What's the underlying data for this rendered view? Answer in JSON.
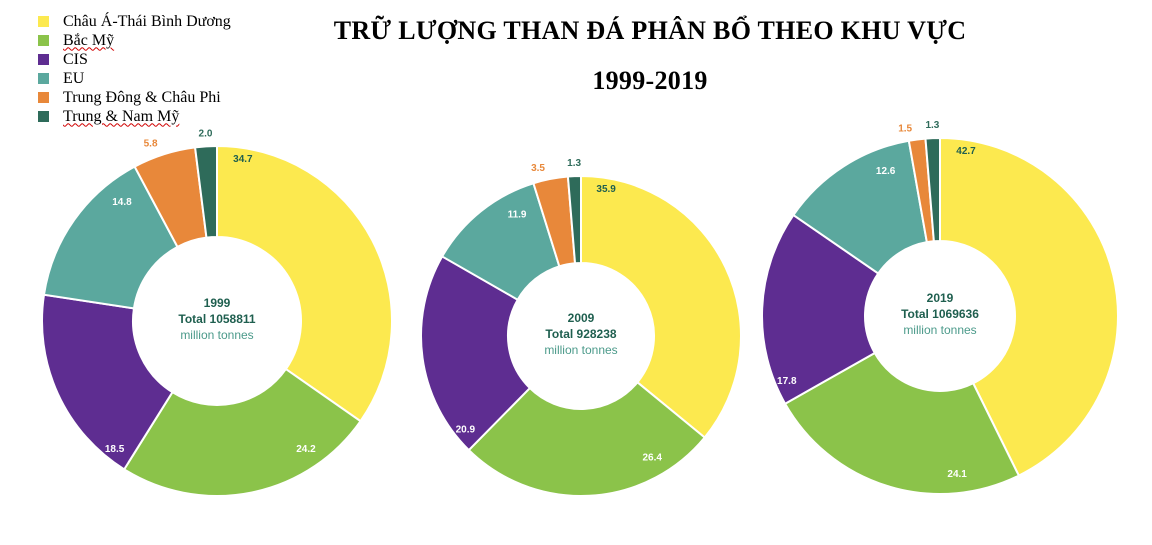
{
  "title_line1": "TRỮ LƯỢNG THAN ĐÁ PHÂN BỔ THEO KHU VỰC",
  "title_line2": "1999-2019",
  "legend": [
    {
      "label": "Châu Á-Thái Bình Dương",
      "color": "#fce94f",
      "underline": false
    },
    {
      "label": "Bắc Mỹ",
      "color": "#8bc34a",
      "underline": true
    },
    {
      "label": "CIS",
      "color": "#5e2d91",
      "underline": false
    },
    {
      "label": "EU",
      "color": "#5ba89e",
      "underline": false
    },
    {
      "label": "Trung Đông & Châu Phi",
      "color": "#e8883a",
      "underline": false
    },
    {
      "label": "Trung & Nam Mỹ",
      "color": "#2e6b5a",
      "underline": true
    }
  ],
  "chart_data": [
    {
      "type": "pie",
      "year": "1999",
      "total_label": "Total 1058811",
      "unit": "million tonnes",
      "categories": [
        "Châu Á-Thái Bình Dương",
        "Bắc Mỹ",
        "CIS",
        "EU",
        "Trung Đông & Châu Phi",
        "Trung & Nam Mỹ"
      ],
      "values": [
        34.7,
        24.2,
        18.5,
        14.8,
        5.8,
        2.0
      ],
      "labels": [
        "34.7",
        "24.2",
        "18.5",
        "14.8",
        "5.8",
        "2.0"
      ]
    },
    {
      "type": "pie",
      "year": "2009",
      "total_label": "Total 928238",
      "unit": "million tonnes",
      "categories": [
        "Châu Á-Thái Bình Dương",
        "Bắc Mỹ",
        "CIS",
        "EU",
        "Trung Đông & Châu Phi",
        "Trung & Nam Mỹ"
      ],
      "values": [
        35.9,
        26.4,
        20.9,
        11.9,
        3.5,
        1.3
      ],
      "labels": [
        "35.9",
        "26.4",
        "20.9",
        "11.9",
        "3.5",
        "1.3"
      ]
    },
    {
      "type": "pie",
      "year": "2019",
      "total_label": "Total 1069636",
      "unit": "million tonnes",
      "categories": [
        "Châu Á-Thái Bình Dương",
        "Bắc Mỹ",
        "CIS",
        "EU",
        "Trung Đông & Châu Phi",
        "Trung & Nam Mỹ"
      ],
      "values": [
        42.7,
        24.1,
        17.8,
        12.6,
        1.5,
        1.3
      ],
      "labels": [
        "42.7",
        "24.1",
        "17.8",
        "12.6",
        "1.5",
        "1.3"
      ]
    }
  ]
}
